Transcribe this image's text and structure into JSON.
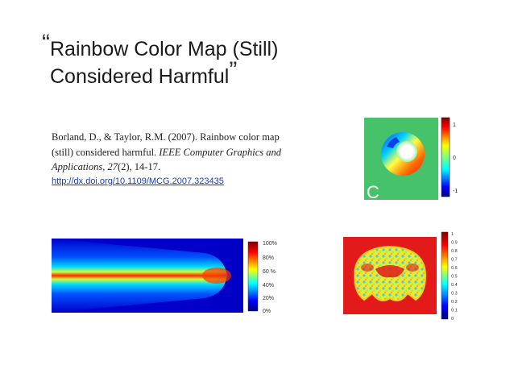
{
  "slide": {
    "title_open_quote": "“",
    "title_line1": "Rainbow Color Map (Still)",
    "title_line2": "Considered Harmful",
    "title_close_quote": "”"
  },
  "citation": {
    "authors_year_title": "Borland, D., & Taylor, R.M. (2007). Rainbow color map (still) considered harmful. ",
    "journal": "IEEE Computer Graphics and Applications, 27",
    "issue_pages": "(2), 14-17.",
    "link": "http://dx.doi.org/10.1109/MCG.2007.323435"
  },
  "figures": {
    "torus": {
      "panel_letter": "C",
      "colorbar_ticks": [
        "1",
        "0",
        "-1"
      ]
    },
    "gradient": {
      "colorbar_ticks": [
        "100%",
        "80%",
        "60 %",
        "40%",
        "20%",
        "0%"
      ]
    },
    "brain": {
      "colorbar_ticks": [
        "1",
        "0.9",
        "0.8",
        "0.7",
        "0.6",
        "0.5",
        "0.4",
        "0.3",
        "0.2",
        "0.1",
        "0"
      ]
    }
  },
  "colors": {
    "text": "#1a1a1a",
    "link": "#1a3fb0",
    "torus_bg": "#46c36a",
    "brain_bg": "#e31a1a"
  }
}
